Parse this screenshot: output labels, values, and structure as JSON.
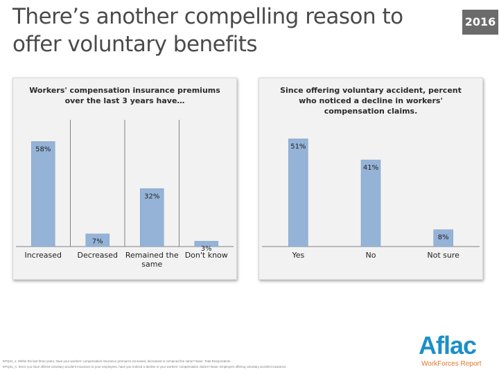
{
  "header": {
    "title": "There’s another compelling reason to offer voluntary benefits",
    "year": "2016"
  },
  "colors": {
    "bar": "#95b3d7",
    "bar_stroke": "#7b9cc4",
    "axis": "#808080",
    "text": "#1f1f1f"
  },
  "chart_data": [
    {
      "type": "bar",
      "title": "Workers' compensation insurance premiums over the last 3 years have…",
      "categories": [
        "Increased",
        "Decreased",
        "Remained the same",
        "Don't know"
      ],
      "category_lines": [
        [
          "Increased"
        ],
        [
          "Decreased"
        ],
        [
          "Remained the",
          "same"
        ],
        [
          "Don't know"
        ]
      ],
      "values": [
        58,
        7,
        32,
        3
      ],
      "labels": [
        "58%",
        "7%",
        "32%",
        "3%"
      ],
      "ylim": [
        0,
        70
      ],
      "grid": false
    },
    {
      "type": "bar",
      "title": "Since offering voluntary accident, percent who noticed a decline in workers' compensation claims.",
      "categories": [
        "Yes",
        "No",
        "Not sure"
      ],
      "category_lines": [
        [
          "Yes"
        ],
        [
          "No"
        ],
        [
          "Not sure"
        ]
      ],
      "values": [
        51,
        41,
        8
      ],
      "labels": [
        "51%",
        "41%",
        "8%"
      ],
      "ylim": [
        0,
        60
      ],
      "grid": false
    }
  ],
  "footnotes": [
    "EPQ31_1: Within the last three years, have your workers' compensation insurance premiums increased, decreased or remained the same? Base: Total Respondents.",
    "EPQ31_A: Since you have offered voluntary accident insurance to your employees, have you noticed a decline in your workers' compensation claims? Base: Employers offering voluntary accident insurance."
  ],
  "logo": {
    "name": "Aflac",
    "subtitle": "WorkForces Report"
  }
}
